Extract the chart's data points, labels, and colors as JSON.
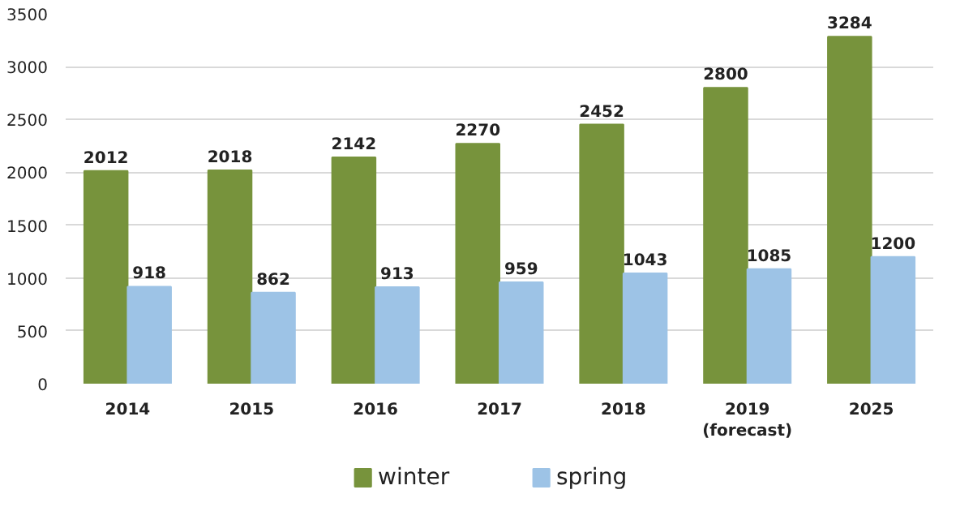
{
  "chart_data": {
    "type": "bar",
    "categories": [
      "2014",
      "2015",
      "2016",
      "2017",
      "2018",
      "2019\n(forecast)",
      "2025"
    ],
    "series": [
      {
        "name": "winter",
        "color": "#77933c",
        "values": [
          2012,
          2018,
          2142,
          2270,
          2452,
          2800,
          3284
        ]
      },
      {
        "name": "spring",
        "color": "#9dc3e6",
        "values": [
          918,
          862,
          913,
          959,
          1043,
          1085,
          1200
        ]
      }
    ],
    "ylim": [
      0,
      3500
    ],
    "yticks": [
      0,
      500,
      1000,
      1500,
      2000,
      2500,
      3000,
      3500
    ],
    "grid": "y",
    "legend": "bottom",
    "data_labels": true
  }
}
